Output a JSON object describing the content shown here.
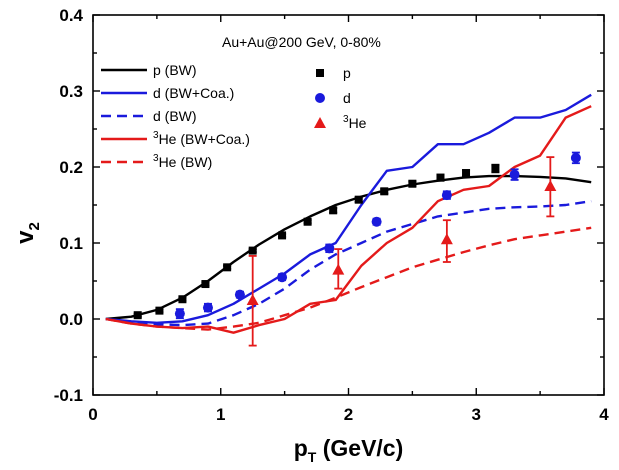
{
  "chart_data": {
    "type": "line",
    "annotation": "Au+Au@200 GeV, 0-80%",
    "xlabel": "p",
    "xlabel_sub": "T",
    "xlabel_unit": " (GeV/c)",
    "ylabel": "v",
    "ylabel_sub": "2",
    "xlim": [
      0,
      4
    ],
    "ylim": [
      -0.1,
      0.4
    ],
    "xticks": [
      0,
      1,
      2,
      3,
      4
    ],
    "yticks": [
      -0.1,
      0.0,
      0.1,
      0.2,
      0.3,
      0.4
    ],
    "ytick_labels": [
      "-0.1",
      "0.0",
      "0.1",
      "0.2",
      "0.3",
      "0.4"
    ],
    "grid": false,
    "legend_position": "top-left",
    "series": [
      {
        "name": "p (BW)",
        "kind": "line",
        "color": "#000000",
        "dash": "solid",
        "x": [
          0.1,
          0.3,
          0.5,
          0.7,
          0.9,
          1.1,
          1.3,
          1.5,
          1.7,
          1.9,
          2.1,
          2.3,
          2.5,
          2.7,
          2.9,
          3.1,
          3.3,
          3.5,
          3.7,
          3.9
        ],
        "y": [
          0.0,
          0.003,
          0.012,
          0.028,
          0.05,
          0.075,
          0.098,
          0.118,
          0.135,
          0.15,
          0.161,
          0.17,
          0.177,
          0.182,
          0.186,
          0.188,
          0.188,
          0.187,
          0.185,
          0.18
        ]
      },
      {
        "name": "d (BW+Coa.)",
        "kind": "line",
        "color": "#1a1adc",
        "dash": "solid",
        "x": [
          0.1,
          0.3,
          0.5,
          0.7,
          0.9,
          1.1,
          1.3,
          1.5,
          1.7,
          1.9,
          2.1,
          2.3,
          2.5,
          2.7,
          2.9,
          3.1,
          3.3,
          3.5,
          3.7,
          3.9
        ],
        "y": [
          0.0,
          -0.003,
          -0.005,
          -0.003,
          0.005,
          0.02,
          0.04,
          0.06,
          0.085,
          0.1,
          0.15,
          0.195,
          0.2,
          0.23,
          0.23,
          0.245,
          0.265,
          0.265,
          0.275,
          0.295
        ]
      },
      {
        "name": "d (BW)",
        "kind": "line",
        "color": "#1a1adc",
        "dash": "dashed",
        "x": [
          0.1,
          0.3,
          0.5,
          0.7,
          0.9,
          1.1,
          1.3,
          1.5,
          1.7,
          1.9,
          2.1,
          2.3,
          2.5,
          2.7,
          2.9,
          3.1,
          3.3,
          3.5,
          3.7,
          3.9
        ],
        "y": [
          0.0,
          -0.004,
          -0.007,
          -0.008,
          -0.006,
          0.005,
          0.02,
          0.04,
          0.065,
          0.085,
          0.1,
          0.115,
          0.125,
          0.135,
          0.14,
          0.145,
          0.147,
          0.148,
          0.15,
          0.155
        ]
      },
      {
        "name": "He (BW+Coa.)",
        "label_sup": "3",
        "kind": "line",
        "color": "#e41a1a",
        "dash": "solid",
        "x": [
          0.1,
          0.3,
          0.5,
          0.7,
          0.9,
          1.1,
          1.3,
          1.5,
          1.7,
          1.9,
          2.1,
          2.3,
          2.5,
          2.7,
          2.9,
          3.1,
          3.3,
          3.5,
          3.7,
          3.9
        ],
        "y": [
          0.0,
          -0.006,
          -0.01,
          -0.012,
          -0.01,
          -0.018,
          -0.008,
          0.0,
          0.02,
          0.025,
          0.07,
          0.1,
          0.12,
          0.155,
          0.17,
          0.175,
          0.2,
          0.215,
          0.265,
          0.28
        ]
      },
      {
        "name": "He (BW)",
        "label_sup": "3",
        "kind": "line",
        "color": "#e41a1a",
        "dash": "dashed",
        "x": [
          0.1,
          0.3,
          0.5,
          0.7,
          0.9,
          1.1,
          1.3,
          1.5,
          1.7,
          1.9,
          2.1,
          2.3,
          2.5,
          2.7,
          2.9,
          3.1,
          3.3,
          3.5,
          3.7,
          3.9
        ],
        "y": [
          0.0,
          -0.006,
          -0.01,
          -0.012,
          -0.014,
          -0.01,
          -0.005,
          0.005,
          0.015,
          0.028,
          0.042,
          0.055,
          0.068,
          0.078,
          0.088,
          0.097,
          0.105,
          0.11,
          0.115,
          0.12
        ]
      },
      {
        "name": "p",
        "kind": "points",
        "marker": "square",
        "color": "#000000",
        "x": [
          0.35,
          0.52,
          0.7,
          0.88,
          1.05,
          1.25,
          1.48,
          1.68,
          1.88,
          2.08,
          2.28,
          2.5,
          2.72,
          2.92,
          3.15
        ],
        "y": [
          0.005,
          0.011,
          0.026,
          0.046,
          0.068,
          0.09,
          0.11,
          0.128,
          0.143,
          0.157,
          0.168,
          0.178,
          0.186,
          0.192,
          0.198
        ],
        "err": [
          0.002,
          0.002,
          0.002,
          0.002,
          0.002,
          0.002,
          0.002,
          0.002,
          0.003,
          0.003,
          0.003,
          0.003,
          0.004,
          0.004,
          0.005
        ]
      },
      {
        "name": "d",
        "kind": "points",
        "marker": "circle",
        "color": "#1a1adc",
        "x": [
          0.68,
          0.9,
          1.15,
          1.48,
          1.85,
          2.22,
          2.77,
          3.3,
          3.78
        ],
        "y": [
          0.007,
          0.015,
          0.032,
          0.055,
          0.093,
          0.128,
          0.163,
          0.19,
          0.212
        ],
        "err": [
          0.006,
          0.005,
          0.004,
          0.004,
          0.005,
          0.004,
          0.005,
          0.007,
          0.007
        ]
      },
      {
        "name": "He",
        "label_sup": "3",
        "kind": "points",
        "marker": "triangle",
        "color": "#e41a1a",
        "x": [
          1.25,
          1.92,
          2.77,
          3.58
        ],
        "y": [
          0.025,
          0.065,
          0.105,
          0.175
        ],
        "err_lo": [
          0.06,
          0.025,
          0.03,
          0.04
        ],
        "err_hi": [
          0.058,
          0.027,
          0.025,
          0.038
        ]
      }
    ]
  }
}
